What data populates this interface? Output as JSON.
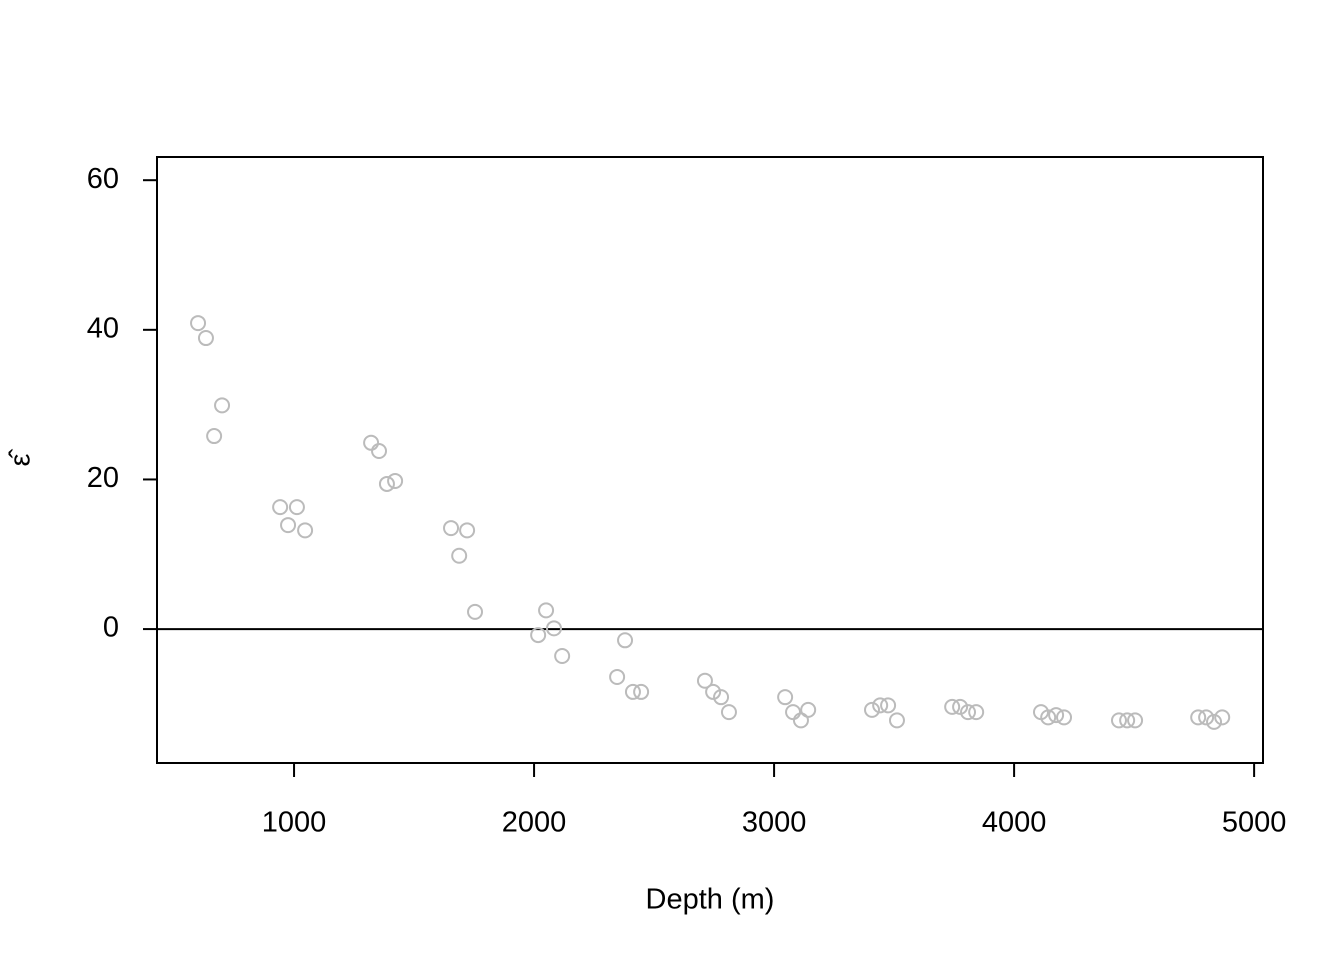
{
  "chart_data": {
    "type": "scatter",
    "xlabel": "Depth (m)",
    "ylabel": "ε̂",
    "x": [
      600,
      633,
      700,
      667,
      942,
      1012,
      975,
      1046,
      1321,
      1354,
      1387,
      1421,
      1654,
      1721,
      1688,
      1754,
      2017,
      2050,
      2083,
      2117,
      2346,
      2379,
      2412,
      2446,
      2712,
      2746,
      2779,
      2812,
      3046,
      3079,
      3112,
      3142,
      3408,
      3442,
      3475,
      3512,
      3742,
      3775,
      3808,
      3842,
      4112,
      4142,
      4175,
      4208,
      4437,
      4471,
      4504,
      4767,
      4800,
      4833,
      4867
    ],
    "values": [
      40.9,
      38.9,
      29.9,
      25.8,
      16.3,
      16.3,
      13.9,
      13.2,
      24.9,
      23.8,
      19.4,
      19.8,
      13.5,
      13.2,
      9.8,
      2.3,
      -0.8,
      2.5,
      0.1,
      -3.6,
      -6.4,
      -1.5,
      -8.4,
      -8.4,
      -6.9,
      -8.4,
      -9.1,
      -11.1,
      -9.1,
      -11.1,
      -12.2,
      -10.8,
      -10.8,
      -10.2,
      -10.2,
      -12.2,
      -10.4,
      -10.4,
      -11.1,
      -11.1,
      -11.1,
      -11.8,
      -11.5,
      -11.8,
      -12.2,
      -12.2,
      -12.2,
      -11.8,
      -11.8,
      -12.4,
      -11.8
    ],
    "color": "#bbbbbb",
    "xlim": [
      429,
      5037
    ],
    "ylim": [
      -17.9,
      63.1
    ],
    "xticks": [
      1000,
      2000,
      3000,
      4000,
      5000
    ],
    "yticks": [
      0,
      20,
      40,
      60
    ],
    "hline": 0,
    "grid": false
  }
}
